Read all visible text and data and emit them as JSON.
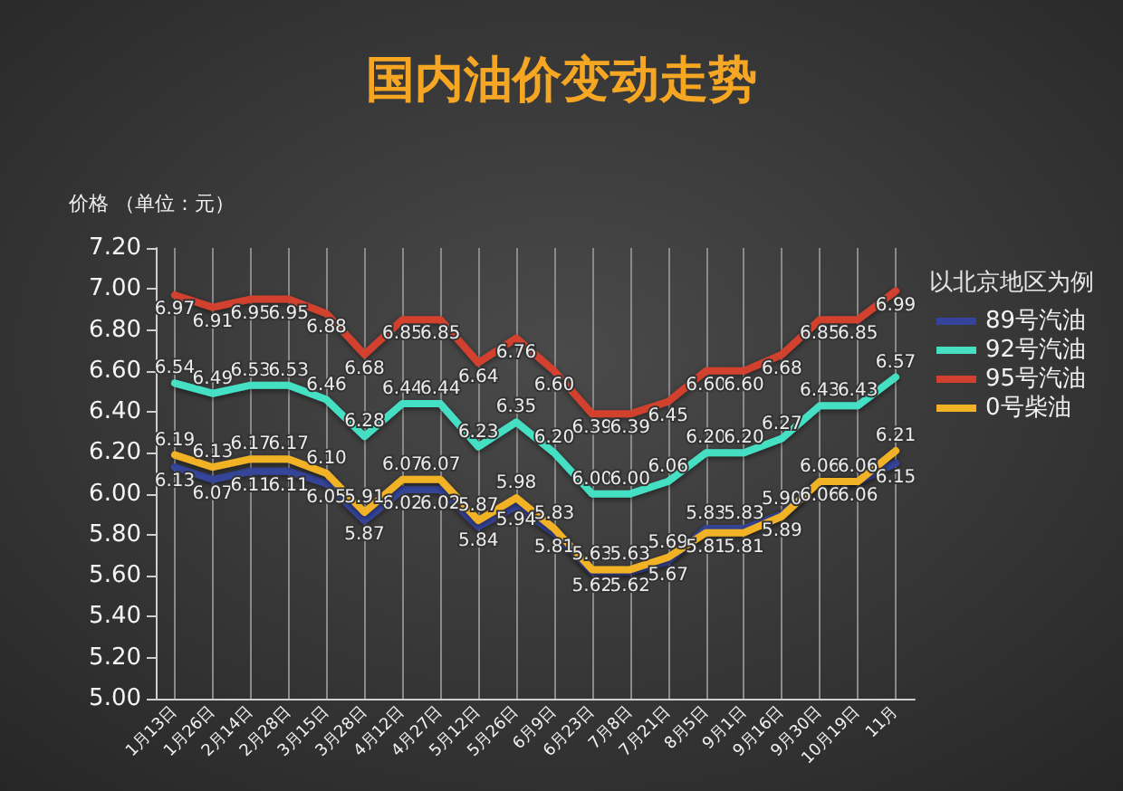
{
  "chart_data": {
    "type": "line",
    "title": "国内油价变动走势",
    "ylabel": "价格 （单位：元）",
    "legend_title": "以北京地区为例",
    "categories": [
      "1月13日",
      "1月26日",
      "2月14日",
      "2月28日",
      "3月15日",
      "3月28日",
      "4月12日",
      "4月27日",
      "5月12日",
      "5月26日",
      "6月9日",
      "6月23日",
      "7月8日",
      "7月21日",
      "8月5日",
      "9月1日",
      "9月16日",
      "9月30日",
      "10月19日",
      "11月"
    ],
    "series": [
      {
        "name": "89号汽油",
        "color": "#34449a",
        "values": [
          6.13,
          6.07,
          6.11,
          6.11,
          6.05,
          5.87,
          6.02,
          6.02,
          5.84,
          5.94,
          5.81,
          5.62,
          5.62,
          5.67,
          5.83,
          5.83,
          5.9,
          6.06,
          6.06,
          6.15
        ],
        "value_labels": [
          "6.13",
          "6.07",
          "6.11",
          "6.11",
          "6.05",
          "5.87",
          "6.02",
          "6.02",
          "5.84",
          "5.94",
          "5.81",
          "5.62",
          "5.62",
          "5.67",
          "5.83",
          "5.83",
          "5.90",
          "6.06",
          "6.06",
          "6.15"
        ]
      },
      {
        "name": "92号汽油",
        "color": "#45dfc3",
        "values": [
          6.54,
          6.49,
          6.53,
          6.53,
          6.46,
          6.28,
          6.44,
          6.44,
          6.23,
          6.35,
          6.2,
          6.0,
          6.0,
          6.06,
          6.2,
          6.2,
          6.27,
          6.43,
          6.43,
          6.57
        ],
        "value_labels": [
          "6.54",
          "6.49",
          "6.53",
          "6.53",
          "6.46",
          "6.28",
          "6.44",
          "6.44",
          "6.23",
          "6.35",
          "6.20",
          "6.00",
          "6.00",
          "6.06",
          "6.20",
          "6.20",
          "6.27",
          "6.43",
          "6.43",
          "6.57"
        ]
      },
      {
        "name": "95号汽油",
        "color": "#d2412d",
        "values": [
          6.97,
          6.91,
          6.95,
          6.95,
          6.88,
          6.68,
          6.85,
          6.85,
          6.64,
          6.76,
          6.6,
          6.39,
          6.39,
          6.45,
          6.6,
          6.6,
          6.68,
          6.85,
          6.85,
          6.99
        ],
        "value_labels": [
          "6.97",
          "6.91",
          "6.95",
          "6.95",
          "6.88",
          "6.68",
          "6.85",
          "6.85",
          "6.64",
          "6.76",
          "6.60",
          "6.39",
          "6.39",
          "6.45",
          "6.60",
          "6.60",
          "6.68",
          "6.85",
          "6.85",
          "6.99"
        ]
      },
      {
        "name": "0号柴油",
        "color": "#f2b225",
        "values": [
          6.19,
          6.13,
          6.17,
          6.17,
          6.1,
          5.91,
          6.07,
          6.07,
          5.87,
          5.98,
          5.83,
          5.63,
          5.63,
          5.69,
          5.81,
          5.81,
          5.89,
          6.06,
          6.06,
          6.21
        ],
        "value_labels": [
          "6.19",
          "6.13",
          "6.17",
          "6.17",
          "6.10",
          "5.91",
          "6.07",
          "6.07",
          "5.87",
          "5.98",
          "5.83",
          "5.63",
          "5.63",
          "5.69",
          "5.81",
          "5.81",
          "5.89",
          "6.06",
          "6.06",
          "6.21"
        ]
      }
    ],
    "ylim": [
      5,
      7.2
    ],
    "yticks": [
      {
        "value": 5,
        "label": "5.00"
      },
      {
        "value": 5.2,
        "label": "5.20"
      },
      {
        "value": 5.4,
        "label": "5.40"
      },
      {
        "value": 5.6,
        "label": "5.60"
      },
      {
        "value": 5.8,
        "label": "5.80"
      },
      {
        "value": 6,
        "label": "6.00"
      },
      {
        "value": 6.2,
        "label": "6.20"
      },
      {
        "value": 6.4,
        "label": "6.40"
      },
      {
        "value": 6.6,
        "label": "6.60"
      },
      {
        "value": 6.8,
        "label": "6.80"
      },
      {
        "value": 7,
        "label": "7.00"
      },
      {
        "value": 7.2,
        "label": "7.20"
      }
    ],
    "grid": "x",
    "legend": "top right",
    "marker": "none",
    "line_style": "solid"
  }
}
